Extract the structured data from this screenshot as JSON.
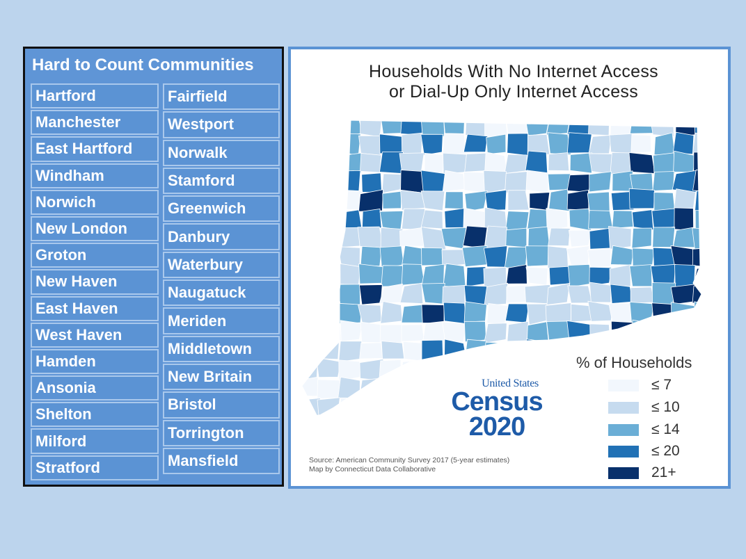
{
  "left_panel": {
    "title": "Hard to Count Communities",
    "column1": [
      "Hartford",
      "Manchester",
      "East Hartford",
      "Windham",
      "Norwich",
      "New London",
      "Groton",
      "New Haven",
      "East Haven",
      "West Haven",
      "Hamden",
      "Ansonia",
      "Shelton",
      "Milford",
      "Stratford"
    ],
    "column2": [
      "Fairfield",
      "Westport",
      "Norwalk",
      "Stamford",
      "Greenwich",
      "Danbury",
      "Waterbury",
      "Naugatuck",
      "Meriden",
      "Middletown",
      "New Britain",
      "Bristol",
      "Torrington",
      "Mansfield"
    ]
  },
  "map": {
    "title_line1": "Households With No Internet Access",
    "title_line2": "or Dial-Up Only Internet Access",
    "legend_title": "% of Households",
    "legend": [
      {
        "label": "≤ 7",
        "color": "#f2f7fd"
      },
      {
        "label": "≤ 10",
        "color": "#c6dbef"
      },
      {
        "label": "≤ 14",
        "color": "#6baed6"
      },
      {
        "label": "≤ 20",
        "color": "#2171b5"
      },
      {
        "label": "21+",
        "color": "#08306b"
      }
    ],
    "source_line1": "Source: American Community Survey 2017 (5-year estimates)",
    "source_line2": "Map by Connecticut Data Collaborative",
    "logo": {
      "top": "United States",
      "middle": "Census",
      "bottom": "2020"
    }
  },
  "colors": {
    "background": "#bcd4ed",
    "panel_blue": "#5f95d6",
    "accent": "#1e5ba8"
  }
}
